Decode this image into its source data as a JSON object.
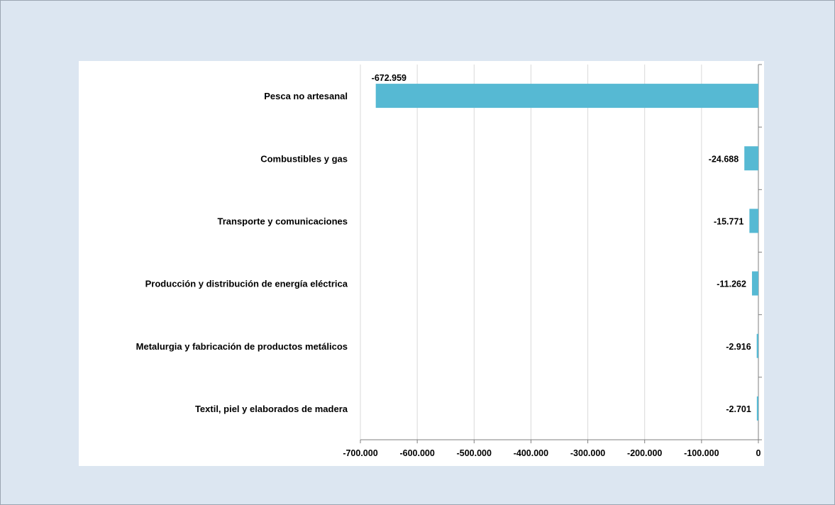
{
  "chart_data": {
    "type": "bar",
    "orientation": "horizontal",
    "categories": [
      "Pesca no artesanal",
      "Combustibles y gas",
      "Transporte y comunicaciones",
      "Producción y distribución de energía eléctrica",
      "Metalurgia y fabricación de productos metálicos",
      "Textil, piel y elaborados de madera"
    ],
    "values": [
      -672959,
      -24688,
      -15771,
      -11262,
      -2916,
      -2701
    ],
    "data_labels": [
      "-672.959",
      "-24.688",
      "-15.771",
      "-11.262",
      "-2.916",
      "-2.701"
    ],
    "xlim": [
      -700000,
      0
    ],
    "xticks": [
      -700000,
      -600000,
      -500000,
      -400000,
      -300000,
      -200000,
      -100000,
      0
    ],
    "xtick_labels": [
      "-700.000",
      "-600.000",
      "-500.000",
      "-400.000",
      "-300.000",
      "-200.000",
      "-100.000",
      "0"
    ],
    "bar_color": "#56b9d3",
    "grid": "vertical",
    "title": "",
    "xlabel": "",
    "ylabel": ""
  }
}
